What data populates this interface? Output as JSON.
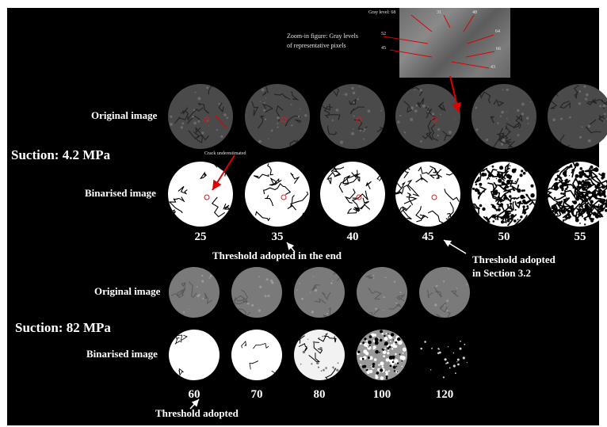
{
  "figure": {
    "suction_top": "Suction: 4.2 MPa",
    "suction_bottom": "Suction: 82 MPa",
    "row_labels": {
      "original_top": "Original image",
      "binarised_top": "Binarised image",
      "original_bottom": "Original image",
      "binarised_bottom": "Binarised image"
    },
    "thresholds_top": [
      "25",
      "35",
      "40",
      "45",
      "50",
      "55"
    ],
    "thresholds_bottom": [
      "60",
      "70",
      "80",
      "100",
      "120"
    ],
    "annotations": {
      "adopted_end": "Threshold adopted in the end",
      "adopted_section_line1": "Threshold adopted",
      "adopted_section_line2": "in Section 3.2",
      "adopted_bottom": "Threshold adopted",
      "crack": "Crack underestimated",
      "zoom_line1": "Zoom-in figure: Gray levels",
      "zoom_line2": "of representative pixels"
    },
    "gray_levels": {
      "label": "Gray level: 68",
      "v31": "31",
      "v48": "48",
      "v52": "52",
      "v64": "64",
      "v45": "45",
      "v66": "66",
      "v43": "43"
    },
    "colors": {
      "background": "#000000",
      "text": "#ffffff",
      "arrow_red": "#e00000",
      "top_original": "#4a4a4a",
      "bottom_original": "#7a7a7a"
    }
  }
}
